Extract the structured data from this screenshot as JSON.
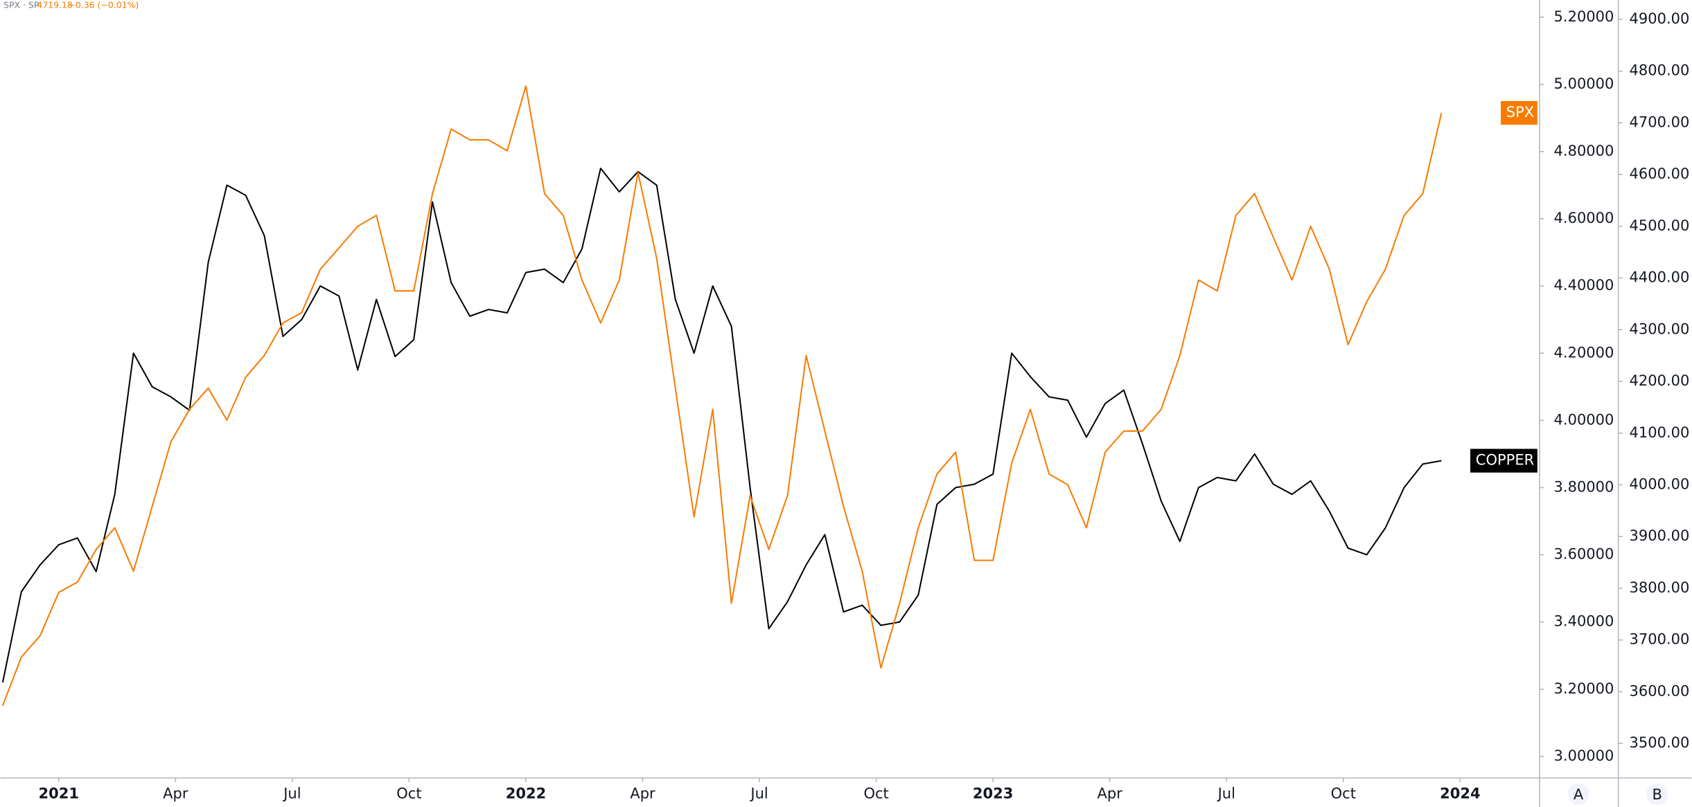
{
  "chart_data": {
    "type": "line",
    "header": {
      "symbol": "SPX · SP",
      "value": "4719.18",
      "change": "−0.36 (−0.01%)"
    },
    "x": [
      2020.88,
      2020.92,
      2020.96,
      2021.0,
      2021.04,
      2021.08,
      2021.12,
      2021.16,
      2021.2,
      2021.24,
      2021.28,
      2021.32,
      2021.36,
      2021.4,
      2021.44,
      2021.48,
      2021.52,
      2021.56,
      2021.6,
      2021.64,
      2021.68,
      2021.72,
      2021.76,
      2021.8,
      2021.84,
      2021.88,
      2021.92,
      2021.96,
      2022.0,
      2022.04,
      2022.08,
      2022.12,
      2022.16,
      2022.2,
      2022.24,
      2022.28,
      2022.32,
      2022.36,
      2022.4,
      2022.44,
      2022.48,
      2022.52,
      2022.56,
      2022.6,
      2022.64,
      2022.68,
      2022.72,
      2022.76,
      2022.8,
      2022.84,
      2022.88,
      2022.92,
      2022.96,
      2023.0,
      2023.04,
      2023.08,
      2023.12,
      2023.16,
      2023.2,
      2023.24,
      2023.28,
      2023.32,
      2023.36,
      2023.4,
      2023.44,
      2023.48,
      2023.52,
      2023.56,
      2023.6,
      2023.64,
      2023.68,
      2023.72,
      2023.76,
      2023.8,
      2023.84,
      2023.88,
      2023.92,
      2023.96
    ],
    "series": [
      {
        "name": "COPPER",
        "color": "#000000",
        "axis": "y",
        "values": [
          3.22,
          3.49,
          3.57,
          3.63,
          3.65,
          3.55,
          3.78,
          4.2,
          4.1,
          4.07,
          4.03,
          4.47,
          4.7,
          4.67,
          4.55,
          4.25,
          4.3,
          4.4,
          4.37,
          4.15,
          4.36,
          4.19,
          4.24,
          4.65,
          4.41,
          4.31,
          4.33,
          4.32,
          4.44,
          4.45,
          4.41,
          4.51,
          4.75,
          4.68,
          4.74,
          4.7,
          4.36,
          4.2,
          4.4,
          4.28,
          3.8,
          3.38,
          3.46,
          3.57,
          3.66,
          3.43,
          3.45,
          3.39,
          3.4,
          3.48,
          3.75,
          3.8,
          3.81,
          3.84,
          4.2,
          4.13,
          4.07,
          4.06,
          3.95,
          4.05,
          4.09,
          3.93,
          3.76,
          3.64,
          3.8,
          3.83,
          3.82,
          3.9,
          3.81,
          3.78,
          3.82,
          3.73,
          3.62,
          3.6,
          3.68,
          3.8,
          3.87,
          3.88
        ]
      },
      {
        "name": "SPX",
        "color": "#f57c00",
        "axis": "y2",
        "values": [
          3573,
          3667,
          3708,
          3792,
          3812,
          3875,
          3917,
          3833,
          3958,
          4083,
          4146,
          4187,
          4125,
          4208,
          4250,
          4313,
          4333,
          4417,
          4458,
          4500,
          4521,
          4375,
          4375,
          4563,
          4688,
          4667,
          4667,
          4646,
          4771,
          4563,
          4521,
          4396,
          4313,
          4396,
          4604,
          4438,
          4187,
          3938,
          4146,
          3771,
          3979,
          3875,
          3979,
          4250,
          4104,
          3958,
          3833,
          3646,
          3771,
          3917,
          4021,
          4063,
          3854,
          3854,
          4042,
          4146,
          4021,
          4000,
          3917,
          4063,
          4104,
          4104,
          4146,
          4250,
          4396,
          4375,
          4521,
          4563,
          4479,
          4396,
          4500,
          4417,
          4271,
          4354,
          4417,
          4521,
          4563,
          4719.18
        ]
      }
    ],
    "xlim": [
      2020.875,
      2024.17
    ],
    "xticks": [
      {
        "value": 2021,
        "label": "2021"
      },
      {
        "value": 2021.25,
        "label": "Apr"
      },
      {
        "value": 2021.5,
        "label": "Jul"
      },
      {
        "value": 2021.75,
        "label": "Oct"
      },
      {
        "value": 2022,
        "label": "2022"
      },
      {
        "value": 2022.25,
        "label": "Apr"
      },
      {
        "value": 2022.5,
        "label": "Jul"
      },
      {
        "value": 2022.75,
        "label": "Oct"
      },
      {
        "value": 2023,
        "label": "2023"
      },
      {
        "value": 2023.25,
        "label": "Apr"
      },
      {
        "value": 2023.5,
        "label": "Jul"
      },
      {
        "value": 2023.75,
        "label": "Oct"
      },
      {
        "value": 2024,
        "label": "2024"
      }
    ],
    "ylim": [
      2.936,
      5.251
    ],
    "yticks": [
      {
        "value": 3.0,
        "label": "3.00000"
      },
      {
        "value": 3.2,
        "label": "3.20000"
      },
      {
        "value": 3.4,
        "label": "3.40000"
      },
      {
        "value": 3.6,
        "label": "3.60000"
      },
      {
        "value": 3.8,
        "label": "3.80000"
      },
      {
        "value": 4.0,
        "label": "4.00000"
      },
      {
        "value": 4.2,
        "label": "4.20000"
      },
      {
        "value": 4.4,
        "label": "4.40000"
      },
      {
        "value": 4.6,
        "label": "4.60000"
      },
      {
        "value": 4.8,
        "label": "4.80000"
      },
      {
        "value": 5.0,
        "label": "5.00000"
      },
      {
        "value": 5.2,
        "label": "5.20000"
      }
    ],
    "y2lim": [
      3433.3,
      4937.5
    ],
    "y2ticks": [
      {
        "value": 3500,
        "label": "3500.00"
      },
      {
        "value": 3600,
        "label": "3600.00"
      },
      {
        "value": 3700,
        "label": "3700.00"
      },
      {
        "value": 3800,
        "label": "3800.00"
      },
      {
        "value": 3900,
        "label": "3900.00"
      },
      {
        "value": 4000,
        "label": "4000.00"
      },
      {
        "value": 4100,
        "label": "4100.00"
      },
      {
        "value": 4200,
        "label": "4200.00"
      },
      {
        "value": 4300,
        "label": "4300.00"
      },
      {
        "value": 4400,
        "label": "4400.00"
      },
      {
        "value": 4500,
        "label": "4500.00"
      },
      {
        "value": 4600,
        "label": "4600.00"
      },
      {
        "value": 4700,
        "label": "4700.00"
      },
      {
        "value": 4800,
        "label": "4800.00"
      },
      {
        "value": 4900,
        "label": "4900.00"
      }
    ],
    "grid": false,
    "scale_buttons": [
      "A",
      "B"
    ]
  }
}
